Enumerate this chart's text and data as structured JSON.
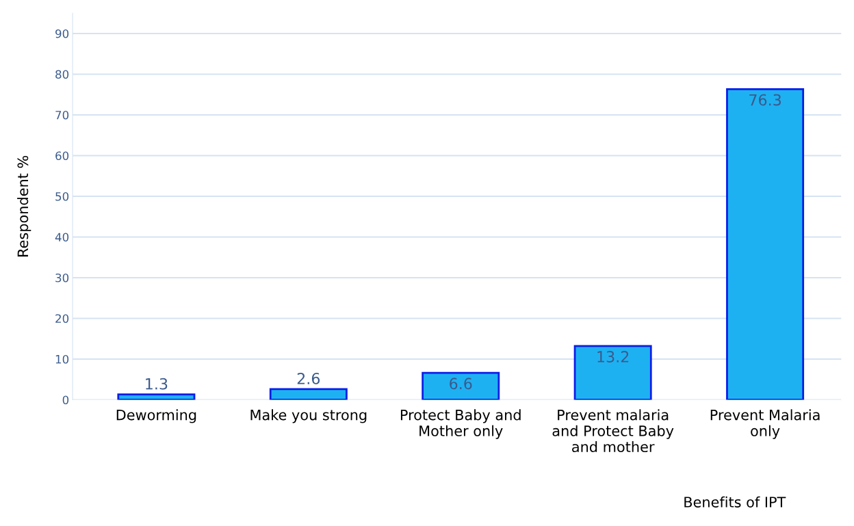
{
  "chart_data": {
    "type": "bar",
    "xlabel": "Benefits of IPT",
    "ylabel": "Respondent %",
    "categories": [
      "Deworming",
      "Make you strong",
      "Protect Baby and\nMother only",
      "Prevent malaria\nand Protect Baby\nand mother",
      "Prevent Malaria\nonly"
    ],
    "values": [
      1.3,
      2.6,
      6.6,
      13.2,
      76.3
    ],
    "color": "#1eb1f2",
    "ylim": [
      0,
      95
    ],
    "yticks": [
      0,
      10,
      20,
      30,
      40,
      50,
      60,
      70,
      80,
      90
    ],
    "grid": "y",
    "data_labels": true
  }
}
